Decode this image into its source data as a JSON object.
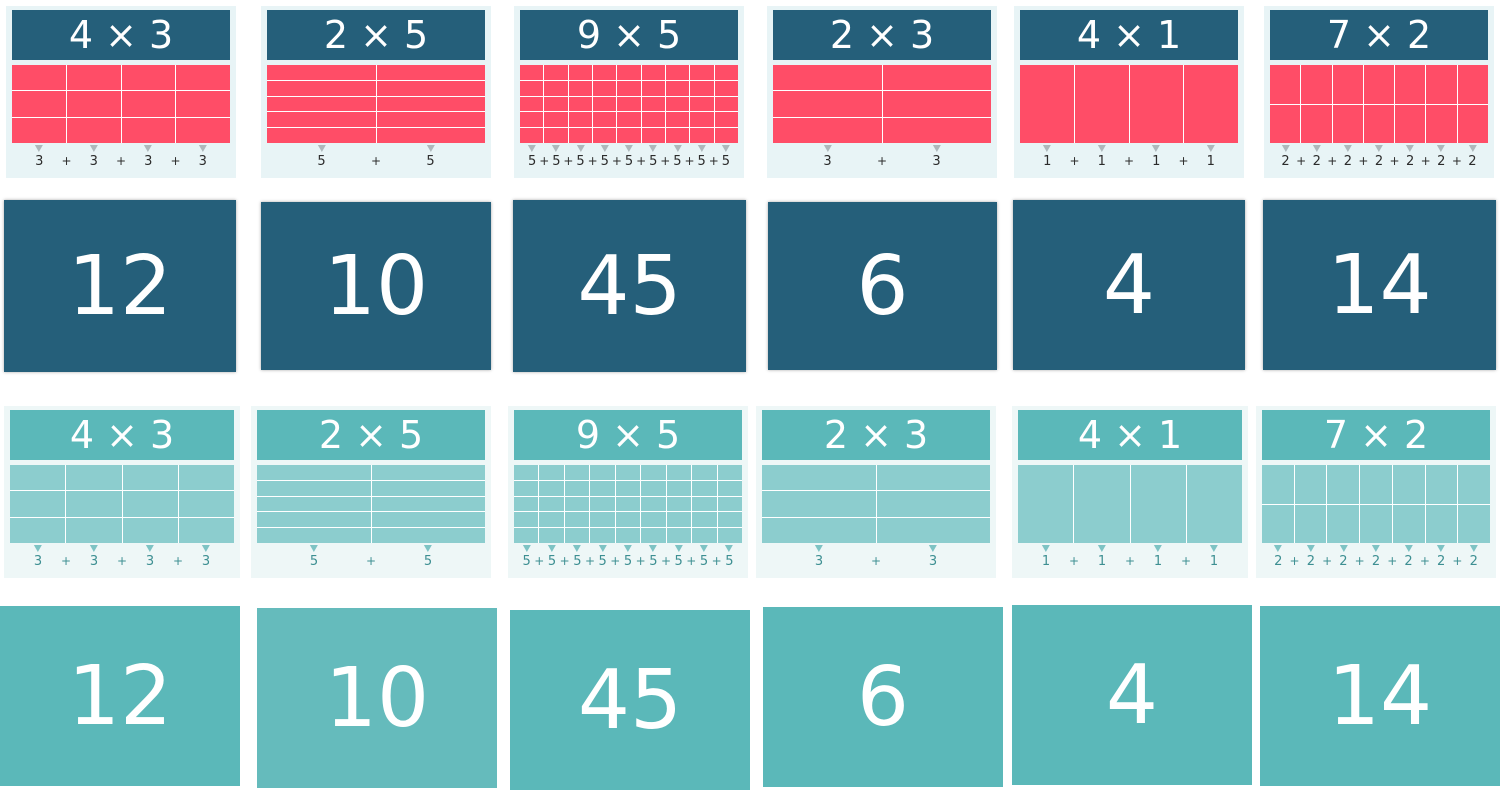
{
  "cards": [
    {
      "title": "4 × 3",
      "cols": 4,
      "rows": 3,
      "addend": "3"
    },
    {
      "title": "2 × 5",
      "cols": 2,
      "rows": 5,
      "addend": "5"
    },
    {
      "title": "9 × 5",
      "cols": 9,
      "rows": 5,
      "addend": "5"
    },
    {
      "title": "2 × 3",
      "cols": 2,
      "rows": 3,
      "addend": "3"
    },
    {
      "title": "4 × 1",
      "cols": 4,
      "rows": 1,
      "addend": "1"
    },
    {
      "title": "7 × 2",
      "cols": 7,
      "rows": 2,
      "addend": "2"
    }
  ],
  "answers": [
    "12",
    "10",
    "45",
    "6",
    "4",
    "14"
  ],
  "plus_sign": "+",
  "colors": {
    "dark_header": "#255f7a",
    "red_cells": "#ff4d67",
    "teal_header": "#5bb8b9",
    "teal_cells": "#8ccdce"
  }
}
